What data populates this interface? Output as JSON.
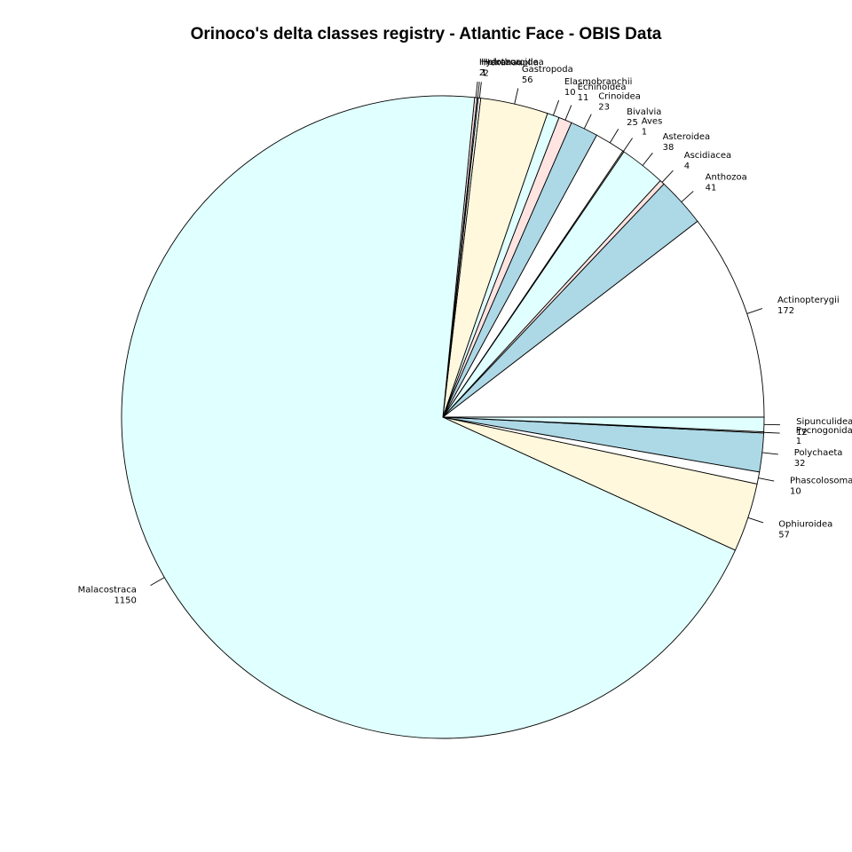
{
  "chart_data": {
    "type": "pie",
    "title": "Orinoco's delta classes registry - Atlantic Face - OBIS Data",
    "palette": [
      "#FFFFFF",
      "#ADD8E6",
      "#FFE4E1",
      "#E0FFFF",
      "#FFF8DC"
    ],
    "slices": [
      {
        "label": "Actinopterygii",
        "value": 172
      },
      {
        "label": "Anthozoa",
        "value": 41
      },
      {
        "label": "Ascidiacea",
        "value": 4
      },
      {
        "label": "Asteroidea",
        "value": 38
      },
      {
        "label": "Aves",
        "value": 1
      },
      {
        "label": "Bivalvia",
        "value": 25
      },
      {
        "label": "Crinoidea",
        "value": 23
      },
      {
        "label": "Echinoidea",
        "value": 11
      },
      {
        "label": "Elasmobranchii",
        "value": 10
      },
      {
        "label": "Gastropoda",
        "value": 56
      },
      {
        "label": "Hexanauplia",
        "value": 2
      },
      {
        "label": "Holothuroidea",
        "value": 1
      },
      {
        "label": "Hydrozoa",
        "value": 2
      },
      {
        "label": "Malacostraca",
        "value": 1150
      },
      {
        "label": "Ophiuroidea",
        "value": 57
      },
      {
        "label": "Phascolosomatidea",
        "value": 10
      },
      {
        "label": "Polychaeta",
        "value": 32
      },
      {
        "label": "Pycnogonida",
        "value": 1
      },
      {
        "label": "Sipunculidea",
        "value": 12
      }
    ]
  }
}
